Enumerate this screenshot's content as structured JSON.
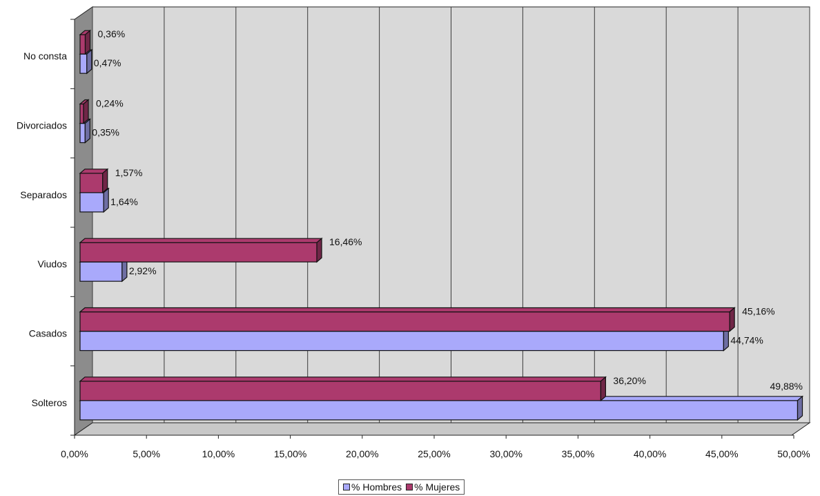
{
  "colors": {
    "hombres": "#a9a9fb",
    "mujeres": "#ac3a6d",
    "wall": "#d9d9d9",
    "side_wall": "#8c8c8c"
  },
  "chart_data": {
    "type": "bar",
    "orientation": "horizontal",
    "categories": [
      "Solteros",
      "Casados",
      "Viudos",
      "Separados",
      "Divorciados",
      "No consta"
    ],
    "series": [
      {
        "name": "% Hombres",
        "color": "#a9a9fb",
        "values": [
          49.88,
          44.74,
          2.92,
          1.64,
          0.35,
          0.47
        ],
        "labels": [
          "49,88%",
          "44,74%",
          "2,92%",
          "1,64%",
          "0,35%",
          "0,47%"
        ]
      },
      {
        "name": "% Mujeres",
        "color": "#ac3a6d",
        "values": [
          36.2,
          45.16,
          16.46,
          1.57,
          0.24,
          0.36
        ],
        "labels": [
          "36,20%",
          "45,16%",
          "16,46%",
          "1,57%",
          "0,24%",
          "0,36%"
        ]
      }
    ],
    "xlim": [
      0,
      50
    ],
    "xticks": [
      "0,00%",
      "5,00%",
      "10,00%",
      "15,00%",
      "20,00%",
      "25,00%",
      "30,00%",
      "35,00%",
      "40,00%",
      "45,00%",
      "50,00%"
    ],
    "grid": true,
    "three_d": true,
    "legend_position": "bottom"
  },
  "legend": {
    "items": [
      {
        "label": "% Hombres"
      },
      {
        "label": "% Mujeres"
      }
    ]
  }
}
